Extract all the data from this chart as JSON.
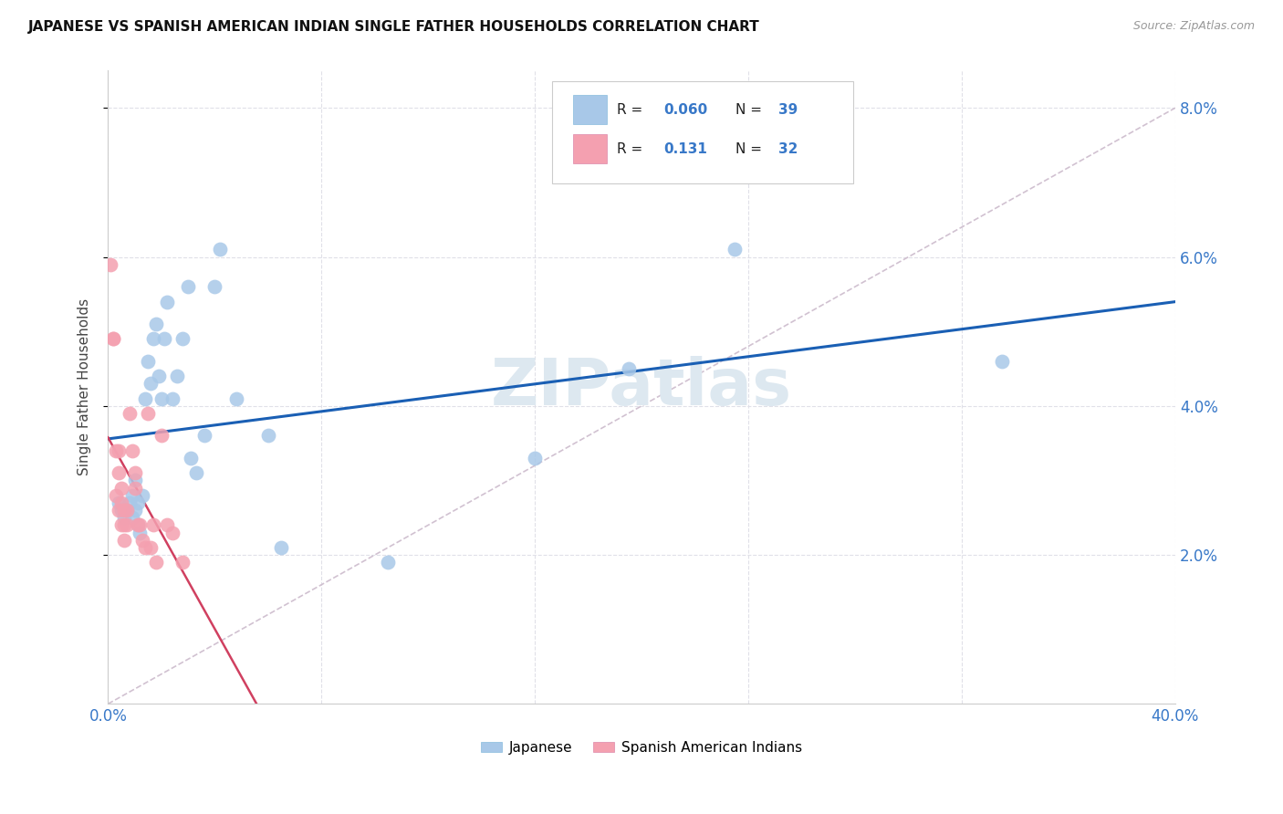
{
  "title": "JAPANESE VS SPANISH AMERICAN INDIAN SINGLE FATHER HOUSEHOLDS CORRELATION CHART",
  "source": "Source: ZipAtlas.com",
  "ylabel": "Single Father Households",
  "xlim": [
    0.0,
    0.4
  ],
  "ylim": [
    0.0,
    0.085
  ],
  "yticks": [
    0.02,
    0.04,
    0.06,
    0.08
  ],
  "ytick_labels": [
    "2.0%",
    "4.0%",
    "6.0%",
    "8.0%"
  ],
  "xticks": [
    0.0,
    0.08,
    0.16,
    0.24,
    0.32,
    0.4
  ],
  "xtick_labels": [
    "0.0%",
    "",
    "",
    "",
    "",
    "40.0%"
  ],
  "japanese_color": "#a8c8e8",
  "japanese_line_color": "#1a5fb4",
  "spanish_color": "#f4a0b0",
  "spanish_line_color": "#d04060",
  "diagonal_color": "#ccbbcc",
  "R_japanese": "0.060",
  "N_japanese": "39",
  "R_spanish": "0.131",
  "N_spanish": "32",
  "japanese_x": [
    0.004,
    0.005,
    0.006,
    0.007,
    0.008,
    0.009,
    0.009,
    0.01,
    0.01,
    0.011,
    0.011,
    0.012,
    0.013,
    0.014,
    0.015,
    0.016,
    0.017,
    0.018,
    0.019,
    0.02,
    0.021,
    0.022,
    0.024,
    0.026,
    0.028,
    0.03,
    0.031,
    0.033,
    0.036,
    0.04,
    0.042,
    0.048,
    0.06,
    0.065,
    0.105,
    0.16,
    0.195,
    0.235,
    0.335
  ],
  "japanese_y": [
    0.027,
    0.026,
    0.025,
    0.026,
    0.027,
    0.025,
    0.028,
    0.026,
    0.03,
    0.024,
    0.027,
    0.023,
    0.028,
    0.041,
    0.046,
    0.043,
    0.049,
    0.051,
    0.044,
    0.041,
    0.049,
    0.054,
    0.041,
    0.044,
    0.049,
    0.056,
    0.033,
    0.031,
    0.036,
    0.056,
    0.061,
    0.041,
    0.036,
    0.021,
    0.019,
    0.033,
    0.045,
    0.061,
    0.046
  ],
  "spanish_x": [
    0.001,
    0.002,
    0.002,
    0.003,
    0.003,
    0.004,
    0.004,
    0.004,
    0.005,
    0.005,
    0.005,
    0.006,
    0.006,
    0.006,
    0.007,
    0.007,
    0.008,
    0.009,
    0.01,
    0.01,
    0.011,
    0.012,
    0.013,
    0.014,
    0.015,
    0.016,
    0.017,
    0.018,
    0.02,
    0.022,
    0.024,
    0.028
  ],
  "spanish_y": [
    0.059,
    0.049,
    0.049,
    0.034,
    0.028,
    0.034,
    0.031,
    0.026,
    0.029,
    0.027,
    0.024,
    0.026,
    0.024,
    0.022,
    0.026,
    0.024,
    0.039,
    0.034,
    0.031,
    0.029,
    0.024,
    0.024,
    0.022,
    0.021,
    0.039,
    0.021,
    0.024,
    0.019,
    0.036,
    0.024,
    0.023,
    0.019
  ],
  "watermark": "ZIPatlas",
  "background_color": "#ffffff",
  "grid_color": "#e0e0e8"
}
